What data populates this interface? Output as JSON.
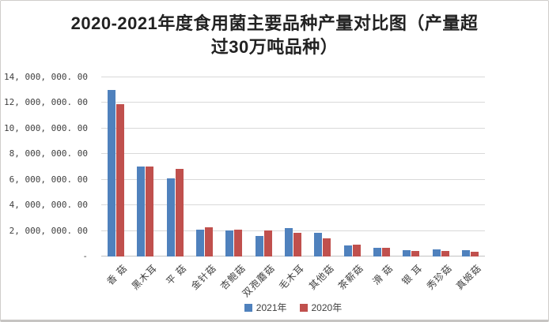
{
  "chart": {
    "title_lines": [
      "2020-2021年度食用菌主要品种产量对比图（产量超",
      "过30万吨品种）"
    ]
  },
  "chart_data": {
    "type": "bar",
    "title": "2020-2021年度食用菌主要品种产量对比图（产量超过30万吨品种）",
    "categories": [
      "香 菇",
      "黑木耳",
      "平 菇",
      "金针菇",
      "杏鲍菇",
      "双孢蘑菇",
      "毛木耳",
      "其他菇",
      "茶薪菇",
      "滑 菇",
      "银 耳",
      "秀珍菇",
      "真姬菇"
    ],
    "series": [
      {
        "name": "2021年",
        "color": "#4F81BD",
        "values": [
          13000000,
          7050000,
          6080000,
          2120000,
          2050000,
          1600000,
          2200000,
          1850000,
          880000,
          700000,
          500000,
          580000,
          470000
        ]
      },
      {
        "name": "2020年",
        "color": "#C0504D",
        "values": [
          11900000,
          7060000,
          6850000,
          2280000,
          2100000,
          2050000,
          1850000,
          1400000,
          900000,
          650000,
          460000,
          420000,
          350000
        ]
      }
    ],
    "xlabel": "",
    "ylabel": "",
    "ylim": [
      0,
      14000000
    ],
    "y_tick_values": [
      14000000,
      12000000,
      10000000,
      8000000,
      6000000,
      4000000,
      2000000,
      0
    ],
    "y_tick_labels": [
      "14, 000, 000. 00",
      "12, 000, 000. 00",
      "10, 000, 000. 00",
      "8, 000, 000. 00",
      "6, 000, 000. 00",
      "4, 000, 000. 00",
      "2, 000, 000. 00",
      "-"
    ],
    "grid": true,
    "grid_color": "#D9D9D9",
    "axis_text_color": "#3F3F3F",
    "title_color": "#222222",
    "border_color": "#CFCDCB",
    "legend_position": "bottom"
  }
}
